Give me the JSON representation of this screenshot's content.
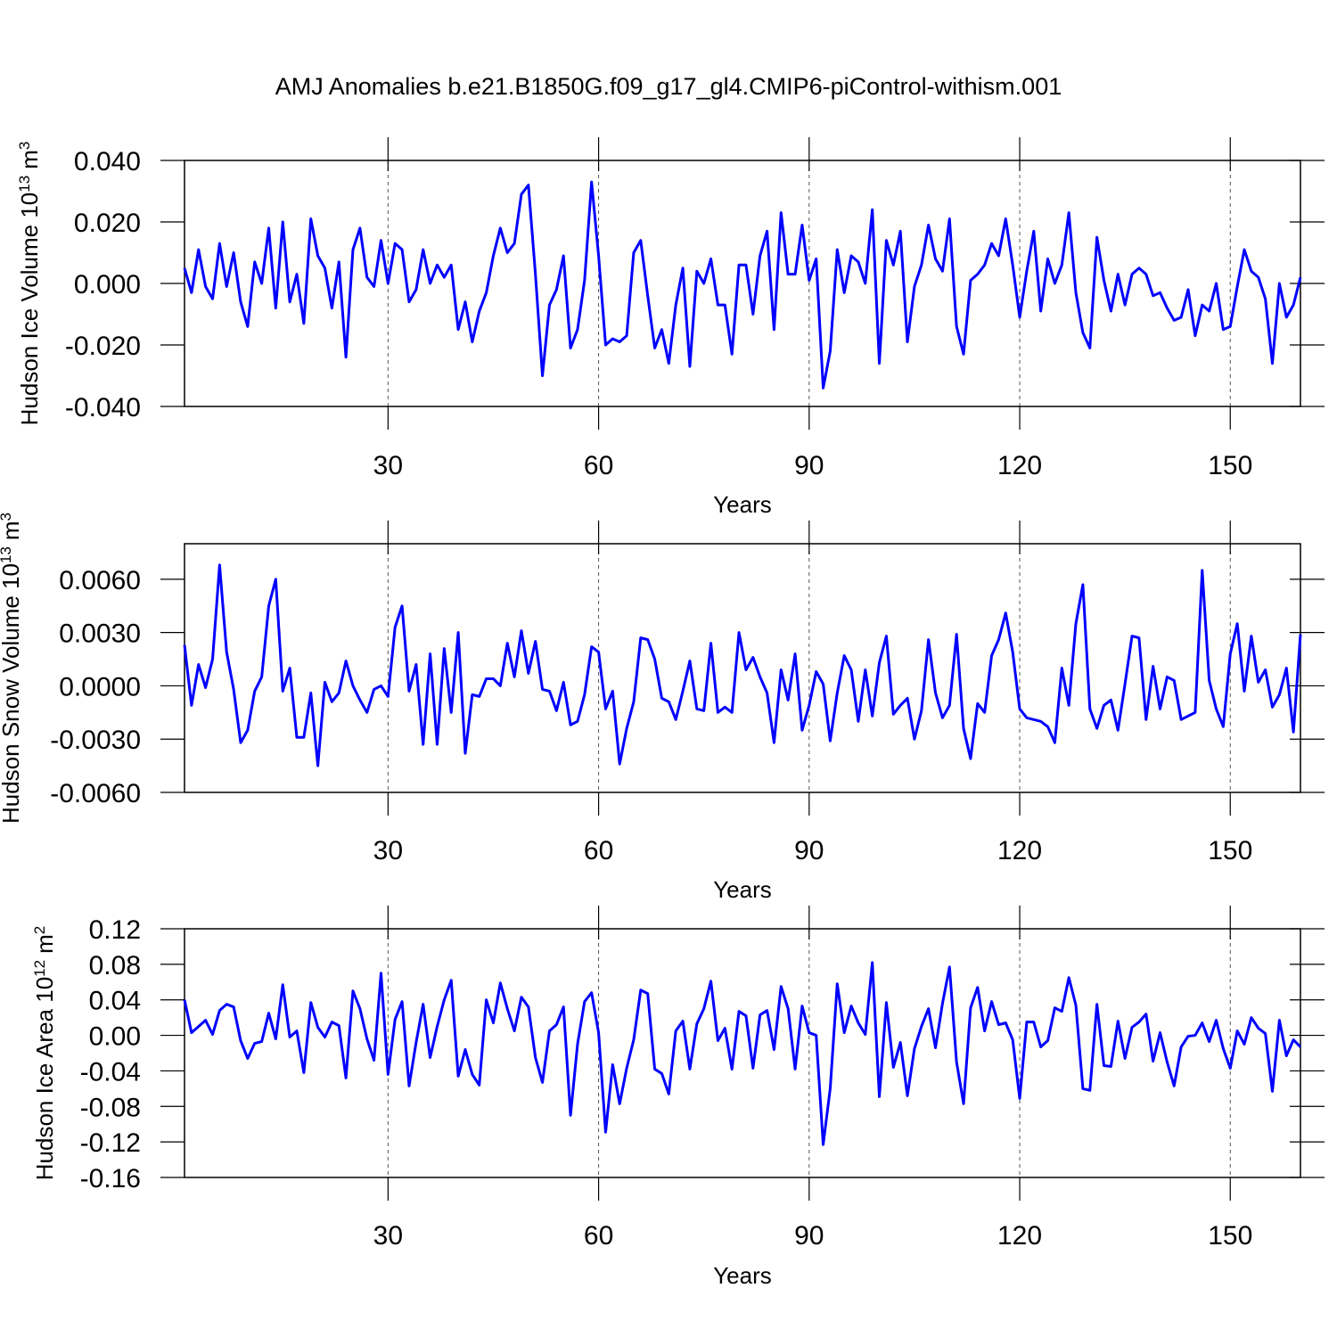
{
  "title": "AMJ Anomalies b.e21.B1850G.f09_g17_gl4.CMIP6-piControl-withism.001",
  "chart_data": [
    {
      "type": "line",
      "xlabel": "Years",
      "ylabel": [
        "Hudson Ice Volume 10",
        "13",
        "m",
        "3"
      ],
      "color": "#0000ff",
      "grid": "x",
      "xlim": [
        1,
        160
      ],
      "xticks": [
        30,
        60,
        90,
        120,
        150
      ],
      "ylim": [
        -0.04,
        0.04
      ],
      "yticks": [
        {
          "value": -0.04,
          "label": "-0.040"
        },
        {
          "value": -0.02,
          "label": "-0.020"
        },
        {
          "value": 0,
          "label": "0.000"
        },
        {
          "value": 0.02,
          "label": "0.020"
        },
        {
          "value": 0.04,
          "label": "0.040"
        }
      ],
      "x": [
        1,
        2,
        3,
        4,
        5,
        6,
        7,
        8,
        9,
        10,
        11,
        12,
        13,
        14,
        15,
        16,
        17,
        18,
        19,
        20,
        21,
        22,
        23,
        24,
        25,
        26,
        27,
        28,
        29,
        30,
        31,
        32,
        33,
        34,
        35,
        36,
        37,
        38,
        39,
        40,
        41,
        42,
        43,
        44,
        45,
        46,
        47,
        48,
        49,
        50,
        51,
        52,
        53,
        54,
        55,
        56,
        57,
        58,
        59,
        60,
        61,
        62,
        63,
        64,
        65,
        66,
        67,
        68,
        69,
        70,
        71,
        72,
        73,
        74,
        75,
        76,
        77,
        78,
        79,
        80,
        81,
        82,
        83,
        84,
        85,
        86,
        87,
        88,
        89,
        90,
        91,
        92,
        93,
        94,
        95,
        96,
        97,
        98,
        99,
        100,
        101,
        102,
        103,
        104,
        105,
        106,
        107,
        108,
        109,
        110,
        111,
        112,
        113,
        114,
        115,
        116,
        117,
        118,
        119,
        120,
        121,
        122,
        123,
        124,
        125,
        126,
        127,
        128,
        129,
        130,
        131,
        132,
        133,
        134,
        135,
        136,
        137,
        138,
        139,
        140,
        141,
        142,
        143,
        144,
        145,
        146,
        147,
        148,
        149,
        150,
        151,
        152,
        153,
        154,
        155,
        156,
        157,
        158,
        159,
        160
      ],
      "values": [
        0.005,
        -0.003,
        0.011,
        -0.001,
        -0.005,
        0.013,
        -0.001,
        0.01,
        -0.006,
        -0.014,
        0.007,
        0.0,
        0.018,
        -0.008,
        0.02,
        -0.006,
        0.003,
        -0.013,
        0.021,
        0.009,
        0.005,
        -0.008,
        0.007,
        -0.024,
        0.011,
        0.018,
        0.002,
        -0.001,
        0.014,
        0.0,
        0.013,
        0.011,
        -0.006,
        -0.002,
        0.011,
        0.0,
        0.006,
        0.002,
        0.006,
        -0.015,
        -0.006,
        -0.019,
        -0.009,
        -0.003,
        0.009,
        0.018,
        0.01,
        0.013,
        0.029,
        0.032,
        0.003,
        -0.03,
        -0.007,
        -0.002,
        0.009,
        -0.021,
        -0.015,
        0.001,
        0.033,
        0.009,
        -0.02,
        -0.018,
        -0.019,
        -0.017,
        0.01,
        0.014,
        -0.004,
        -0.021,
        -0.015,
        -0.026,
        -0.007,
        0.005,
        -0.027,
        0.004,
        0.0,
        0.008,
        -0.007,
        -0.007,
        -0.023,
        0.006,
        0.006,
        -0.01,
        0.009,
        0.017,
        -0.015,
        0.023,
        0.003,
        0.003,
        0.019,
        0.001,
        0.008,
        -0.034,
        -0.022,
        0.011,
        -0.003,
        0.009,
        0.007,
        0.0,
        0.024,
        -0.026,
        0.014,
        0.006,
        0.017,
        -0.019,
        -0.001,
        0.006,
        0.019,
        0.008,
        0.004,
        0.021,
        -0.014,
        -0.023,
        0.001,
        0.003,
        0.006,
        0.013,
        0.009,
        0.021,
        0.006,
        -0.011,
        0.004,
        0.017,
        -0.009,
        0.008,
        0.0,
        0.006,
        0.023,
        -0.003,
        -0.016,
        -0.021,
        0.015,
        0.001,
        -0.009,
        0.003,
        -0.007,
        0.003,
        0.005,
        0.003,
        -0.004,
        -0.003,
        -0.008,
        -0.012,
        -0.011,
        -0.002,
        -0.017,
        -0.007,
        -0.009,
        0.0,
        -0.015,
        -0.014,
        -0.001,
        0.011,
        0.004,
        0.002,
        -0.005,
        -0.026,
        0.0,
        -0.011,
        -0.007,
        0.002
      ]
    },
    {
      "type": "line",
      "xlabel": "Years",
      "ylabel": [
        "Hudson Snow Volume 10",
        "13",
        "m",
        "3"
      ],
      "color": "#0000ff",
      "grid": "x",
      "xlim": [
        1,
        160
      ],
      "xticks": [
        30,
        60,
        90,
        120,
        150
      ],
      "ylim": [
        -0.006,
        0.008
      ],
      "yticks": [
        {
          "value": -0.006,
          "label": "-0.0060"
        },
        {
          "value": -0.003,
          "label": "-0.0030"
        },
        {
          "value": 0,
          "label": "0.0000"
        },
        {
          "value": 0.003,
          "label": "0.0030"
        },
        {
          "value": 0.006,
          "label": "0.0060"
        }
      ],
      "x": [
        1,
        2,
        3,
        4,
        5,
        6,
        7,
        8,
        9,
        10,
        11,
        12,
        13,
        14,
        15,
        16,
        17,
        18,
        19,
        20,
        21,
        22,
        23,
        24,
        25,
        26,
        27,
        28,
        29,
        30,
        31,
        32,
        33,
        34,
        35,
        36,
        37,
        38,
        39,
        40,
        41,
        42,
        43,
        44,
        45,
        46,
        47,
        48,
        49,
        50,
        51,
        52,
        53,
        54,
        55,
        56,
        57,
        58,
        59,
        60,
        61,
        62,
        63,
        64,
        65,
        66,
        67,
        68,
        69,
        70,
        71,
        72,
        73,
        74,
        75,
        76,
        77,
        78,
        79,
        80,
        81,
        82,
        83,
        84,
        85,
        86,
        87,
        88,
        89,
        90,
        91,
        92,
        93,
        94,
        95,
        96,
        97,
        98,
        99,
        100,
        101,
        102,
        103,
        104,
        105,
        106,
        107,
        108,
        109,
        110,
        111,
        112,
        113,
        114,
        115,
        116,
        117,
        118,
        119,
        120,
        121,
        122,
        123,
        124,
        125,
        126,
        127,
        128,
        129,
        130,
        131,
        132,
        133,
        134,
        135,
        136,
        137,
        138,
        139,
        140,
        141,
        142,
        143,
        144,
        145,
        146,
        147,
        148,
        149,
        150,
        151,
        152,
        153,
        154,
        155,
        156,
        157,
        158,
        159,
        160
      ],
      "values": [
        0.0023,
        -0.0011,
        0.0012,
        -0.0001,
        0.0015,
        0.0068,
        0.0019,
        -0.0002,
        -0.0032,
        -0.0025,
        -0.0003,
        0.0005,
        0.0045,
        0.006,
        -0.0003,
        0.001,
        -0.0029,
        -0.0029,
        -0.0004,
        -0.0045,
        0.0002,
        -0.0009,
        -0.0004,
        0.0014,
        0.0,
        -0.0008,
        -0.0015,
        -0.0002,
        0.0,
        -0.0006,
        0.0033,
        0.0045,
        -0.0003,
        0.0012,
        -0.0033,
        0.0018,
        -0.0033,
        0.0021,
        -0.0015,
        0.003,
        -0.0038,
        -0.0005,
        -0.0006,
        0.0004,
        0.0004,
        0.0,
        0.0024,
        0.0005,
        0.0031,
        0.0007,
        0.0025,
        -0.0002,
        -0.0003,
        -0.0014,
        0.0002,
        -0.0022,
        -0.002,
        -0.0005,
        0.0022,
        0.0019,
        -0.0013,
        -0.0003,
        -0.0044,
        -0.0024,
        -0.0009,
        0.0027,
        0.0026,
        0.0015,
        -0.0007,
        -0.0009,
        -0.0019,
        -0.0003,
        0.0014,
        -0.0013,
        -0.0014,
        0.0024,
        -0.0015,
        -0.0012,
        -0.0015,
        0.003,
        0.0009,
        0.0016,
        0.0005,
        -0.0004,
        -0.0032,
        0.0009,
        -0.0008,
        0.0018,
        -0.0025,
        -0.0011,
        0.0008,
        0.0001,
        -0.0031,
        -0.0004,
        0.0017,
        0.0009,
        -0.002,
        0.0009,
        -0.0017,
        0.0013,
        0.0028,
        -0.0016,
        -0.0011,
        -0.0007,
        -0.003,
        -0.0014,
        0.0026,
        -0.0004,
        -0.0018,
        -0.0011,
        0.0029,
        -0.0024,
        -0.0041,
        -0.001,
        -0.0015,
        0.0017,
        0.0026,
        0.0041,
        0.0019,
        -0.0013,
        -0.0018,
        -0.0019,
        -0.002,
        -0.0023,
        -0.0032,
        0.001,
        -0.0011,
        0.0035,
        0.0057,
        -0.0013,
        -0.0024,
        -0.0011,
        -0.0008,
        -0.0025,
        0.0001,
        0.0028,
        0.0027,
        -0.0019,
        0.0011,
        -0.0013,
        0.0005,
        0.0003,
        -0.0019,
        -0.0017,
        -0.0015,
        0.0065,
        0.0003,
        -0.0013,
        -0.0023,
        0.0018,
        0.0035,
        -0.0003,
        0.0028,
        0.0002,
        0.0009,
        -0.0012,
        -0.0005,
        0.001,
        -0.0026,
        0.0029
      ]
    },
    {
      "type": "line",
      "xlabel": "Years",
      "ylabel": [
        "Hudson Ice Area 10",
        "12",
        "m",
        "2"
      ],
      "color": "#0000ff",
      "grid": "x",
      "xlim": [
        1,
        160
      ],
      "xticks": [
        30,
        60,
        90,
        120,
        150
      ],
      "ylim": [
        -0.16,
        0.12
      ],
      "yticks": [
        -0.16,
        -0.12,
        -0.08,
        -0.04,
        {
          "value": 0,
          "label": "0.00"
        },
        0.04,
        0.08,
        0.12
      ],
      "x": [
        1,
        2,
        3,
        4,
        5,
        6,
        7,
        8,
        9,
        10,
        11,
        12,
        13,
        14,
        15,
        16,
        17,
        18,
        19,
        20,
        21,
        22,
        23,
        24,
        25,
        26,
        27,
        28,
        29,
        30,
        31,
        32,
        33,
        34,
        35,
        36,
        37,
        38,
        39,
        40,
        41,
        42,
        43,
        44,
        45,
        46,
        47,
        48,
        49,
        50,
        51,
        52,
        53,
        54,
        55,
        56,
        57,
        58,
        59,
        60,
        61,
        62,
        63,
        64,
        65,
        66,
        67,
        68,
        69,
        70,
        71,
        72,
        73,
        74,
        75,
        76,
        77,
        78,
        79,
        80,
        81,
        82,
        83,
        84,
        85,
        86,
        87,
        88,
        89,
        90,
        91,
        92,
        93,
        94,
        95,
        96,
        97,
        98,
        99,
        100,
        101,
        102,
        103,
        104,
        105,
        106,
        107,
        108,
        109,
        110,
        111,
        112,
        113,
        114,
        115,
        116,
        117,
        118,
        119,
        120,
        121,
        122,
        123,
        124,
        125,
        126,
        127,
        128,
        129,
        130,
        131,
        132,
        133,
        134,
        135,
        136,
        137,
        138,
        139,
        140,
        141,
        142,
        143,
        144,
        145,
        146,
        147,
        148,
        149,
        150,
        151,
        152,
        153,
        154,
        155,
        156,
        157,
        158,
        159,
        160
      ],
      "values": [
        0.04,
        0.003,
        0.01,
        0.017,
        0.001,
        0.028,
        0.035,
        0.032,
        -0.006,
        -0.026,
        -0.009,
        -0.007,
        0.025,
        -0.004,
        0.057,
        -0.002,
        0.005,
        -0.042,
        0.037,
        0.009,
        -0.002,
        0.015,
        0.011,
        -0.048,
        0.05,
        0.03,
        -0.004,
        -0.028,
        0.07,
        -0.044,
        0.018,
        0.038,
        -0.057,
        -0.008,
        0.035,
        -0.025,
        0.01,
        0.04,
        0.062,
        -0.046,
        -0.016,
        -0.044,
        -0.056,
        0.04,
        0.014,
        0.059,
        0.03,
        0.005,
        0.043,
        0.032,
        -0.025,
        -0.053,
        0.005,
        0.012,
        0.032,
        -0.09,
        -0.01,
        0.038,
        0.048,
        0.003,
        -0.109,
        -0.033,
        -0.077,
        -0.037,
        -0.005,
        0.051,
        0.047,
        -0.038,
        -0.043,
        -0.066,
        0.005,
        0.016,
        -0.038,
        0.013,
        0.03,
        0.061,
        -0.006,
        0.008,
        -0.038,
        0.027,
        0.022,
        -0.037,
        0.023,
        0.028,
        -0.016,
        0.055,
        0.03,
        -0.038,
        0.033,
        0.003,
        0.0,
        -0.123,
        -0.06,
        0.058,
        0.003,
        0.033,
        0.014,
        0.001,
        0.082,
        -0.069,
        0.037,
        -0.036,
        -0.008,
        -0.068,
        -0.015,
        0.01,
        0.03,
        -0.014,
        0.036,
        0.077,
        -0.03,
        -0.077,
        0.031,
        0.054,
        0.005,
        0.038,
        0.012,
        0.014,
        -0.005,
        -0.071,
        0.015,
        0.015,
        -0.013,
        -0.006,
        0.031,
        0.027,
        0.065,
        0.034,
        -0.06,
        -0.062,
        0.035,
        -0.034,
        -0.035,
        0.016,
        -0.026,
        0.009,
        0.015,
        0.024,
        -0.029,
        0.003,
        -0.03,
        -0.057,
        -0.013,
        -0.001,
        0.0,
        0.014,
        -0.007,
        0.017,
        -0.015,
        -0.037,
        0.005,
        -0.01,
        0.02,
        0.008,
        0.002,
        -0.063,
        0.017,
        -0.023,
        -0.005,
        -0.013
      ]
    }
  ]
}
